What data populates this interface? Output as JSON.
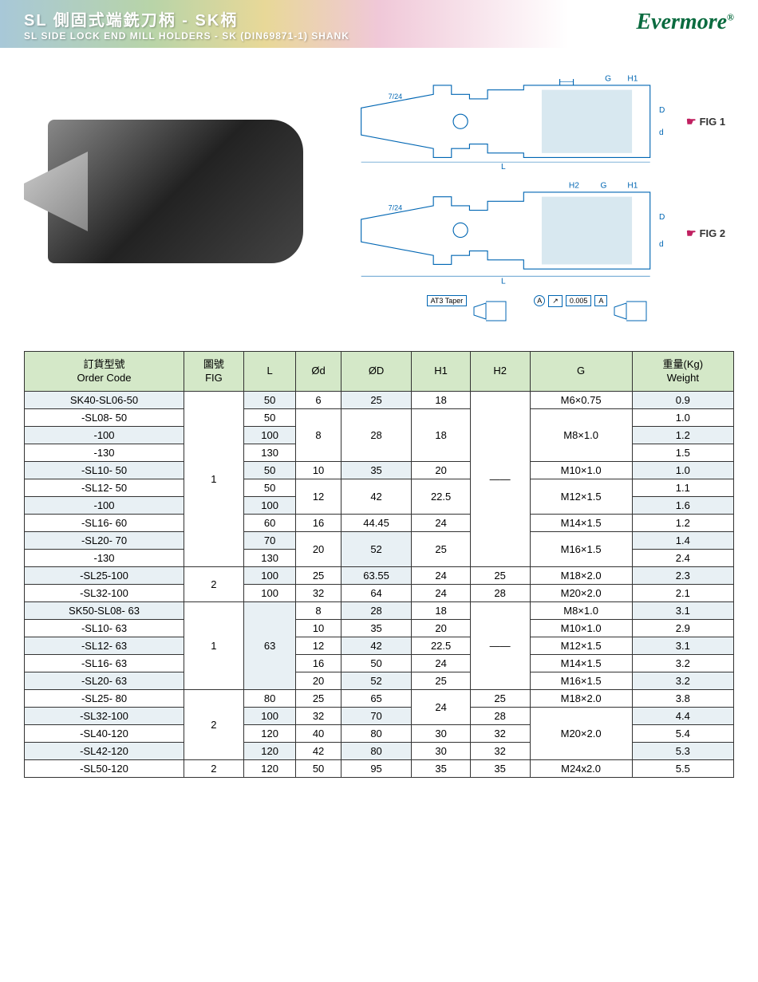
{
  "header": {
    "title_cn": "SL 側固式端銑刀柄 - SK柄",
    "title_en": "SL SIDE LOCK END MILL HOLDERS - SK (DIN69871-1) SHANK",
    "logo": "Evermore"
  },
  "figures": {
    "fig1_label": "FIG 1",
    "fig2_label": "FIG 2",
    "taper_label": "7/24",
    "dims": {
      "L": "L",
      "d": "d",
      "D": "D",
      "H1": "H1",
      "H2": "H2",
      "G": "G"
    },
    "tolerance": {
      "taper": "AT3 Taper",
      "datum": "A",
      "runout": "0.005",
      "ref": "A"
    }
  },
  "table": {
    "headers": {
      "order": {
        "cn": "訂貨型號",
        "en": "Order Code"
      },
      "fig": {
        "cn": "圖號",
        "en": "FIG"
      },
      "L": "L",
      "d": "Ød",
      "D": "ØD",
      "H1": "H1",
      "H2": "H2",
      "G": "G",
      "weight": {
        "cn": "重量(Kg)",
        "en": "Weight"
      }
    },
    "rows": [
      {
        "order": "SK40-SL06-50",
        "fig": "1",
        "figspan": 10,
        "L": "50",
        "d": "6",
        "D": "25",
        "H1": "18",
        "H2": "——",
        "H2span": 10,
        "G": "M6×0.75",
        "W": "0.9"
      },
      {
        "order": "-SL08- 50",
        "L": "50",
        "d": "8",
        "dspan": 3,
        "D": "28",
        "Dspan": 3,
        "H1": "18",
        "H1span": 3,
        "G": "M8×1.0",
        "Gspan": 3,
        "W": "1.0"
      },
      {
        "order": "-100",
        "L": "100",
        "W": "1.2"
      },
      {
        "order": "-130",
        "L": "130",
        "W": "1.5"
      },
      {
        "order": "-SL10- 50",
        "L": "50",
        "d": "10",
        "D": "35",
        "H1": "20",
        "G": "M10×1.0",
        "W": "1.0"
      },
      {
        "order": "-SL12- 50",
        "L": "50",
        "d": "12",
        "dspan": 2,
        "D": "42",
        "Dspan": 2,
        "H1": "22.5",
        "H1span": 2,
        "G": "M12×1.5",
        "Gspan": 2,
        "W": "1.1"
      },
      {
        "order": "-100",
        "L": "100",
        "W": "1.6"
      },
      {
        "order": "-SL16- 60",
        "L": "60",
        "d": "16",
        "D": "44.45",
        "H1": "24",
        "G": "M14×1.5",
        "W": "1.2"
      },
      {
        "order": "-SL20- 70",
        "L": "70",
        "d": "20",
        "dspan": 2,
        "D": "52",
        "Dspan": 2,
        "H1": "25",
        "H1span": 2,
        "G": "M16×1.5",
        "Gspan": 2,
        "W": "1.4"
      },
      {
        "order": "-130",
        "L": "130",
        "W": "2.4"
      },
      {
        "order": "-SL25-100",
        "fig": "2",
        "figspan": 2,
        "L": "100",
        "d": "25",
        "D": "63.55",
        "H1": "24",
        "H2": "25",
        "G": "M18×2.0",
        "W": "2.3"
      },
      {
        "order": "-SL32-100",
        "L": "100",
        "d": "32",
        "D": "64",
        "H1": "24",
        "H2": "28",
        "G": "M20×2.0",
        "W": "2.1"
      },
      {
        "order": "SK50-SL08- 63",
        "fig": "1",
        "figspan": 5,
        "L": "63",
        "Lspan": 5,
        "d": "8",
        "D": "28",
        "H1": "18",
        "H2": "——",
        "H2span": 5,
        "G": "M8×1.0",
        "W": "3.1"
      },
      {
        "order": "-SL10- 63",
        "d": "10",
        "D": "35",
        "H1": "20",
        "G": "M10×1.0",
        "W": "2.9"
      },
      {
        "order": "-SL12- 63",
        "d": "12",
        "D": "42",
        "H1": "22.5",
        "G": "M12×1.5",
        "W": "3.1"
      },
      {
        "order": "-SL16- 63",
        "d": "16",
        "D": "50",
        "H1": "24",
        "G": "M14×1.5",
        "W": "3.2"
      },
      {
        "order": "-SL20- 63",
        "d": "20",
        "D": "52",
        "H1": "25",
        "G": "M16×1.5",
        "W": "3.2"
      },
      {
        "order": "-SL25- 80",
        "fig": "2",
        "figspan": 4,
        "L": "80",
        "d": "25",
        "D": "65",
        "H1": "24",
        "H1span": 2,
        "H2": "25",
        "G": "M18×2.0",
        "W": "3.8"
      },
      {
        "order": "-SL32-100",
        "L": "100",
        "d": "32",
        "D": "70",
        "H2": "28",
        "G": "M20×2.0",
        "Gspan": 3,
        "W": "4.4"
      },
      {
        "order": "-SL40-120",
        "L": "120",
        "d": "40",
        "D": "80",
        "H1": "30",
        "H2": "32",
        "W": "5.4"
      },
      {
        "order": "-SL42-120",
        "L": "120",
        "d": "42",
        "D": "80",
        "H1": "30",
        "H2": "32",
        "W": "5.3"
      },
      {
        "order": "-SL50-120",
        "fig": "2",
        "L": "120",
        "d": "50",
        "D": "95",
        "H1": "35",
        "H2": "35",
        "G": "M24x2.0",
        "W": "5.5"
      }
    ]
  }
}
